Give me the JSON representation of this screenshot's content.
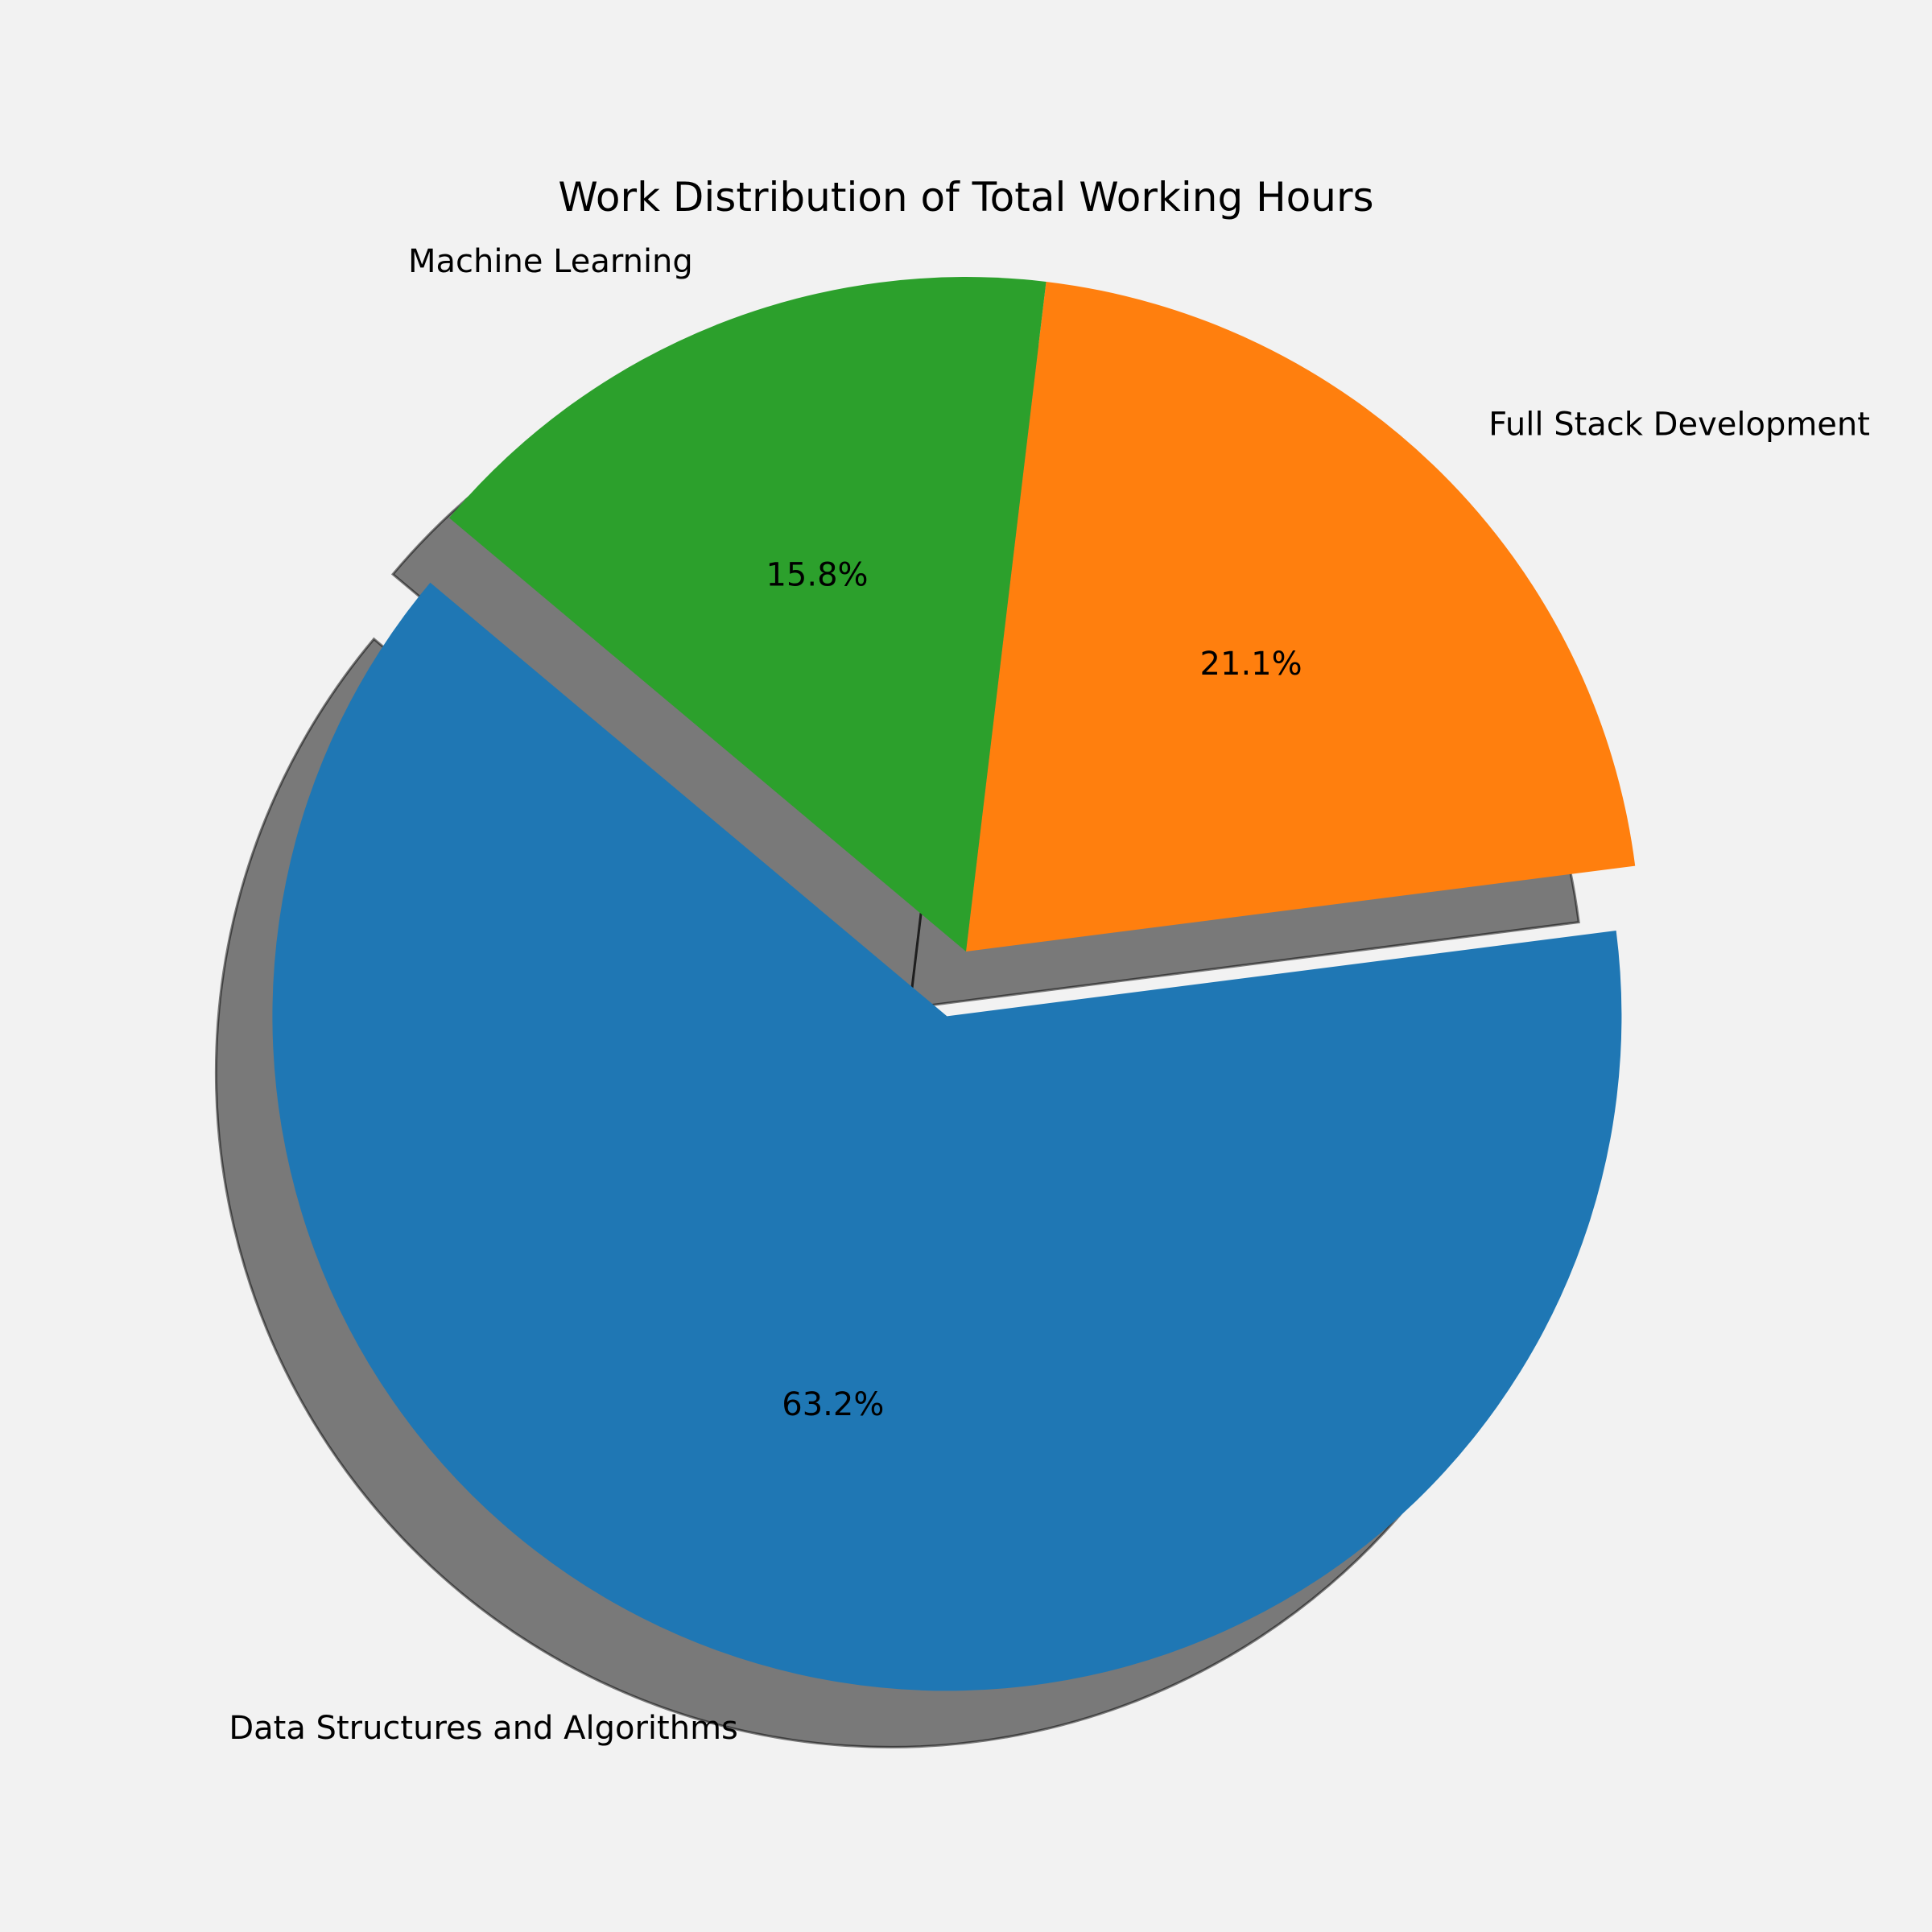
{
  "chart_data": {
    "type": "pie",
    "title": "Work Distribution of Total Working Hours",
    "start_angle_deg": 140,
    "direction": "counterclockwise",
    "shadow": true,
    "slices": [
      {
        "label": "Data Structures and Algorithms",
        "percent": 63.2,
        "percent_label": "63.2%",
        "color": "#1f77b4",
        "exploded": true
      },
      {
        "label": "Full Stack Development",
        "percent": 21.1,
        "percent_label": "21.1%",
        "color": "#ff7f0e",
        "exploded": false
      },
      {
        "label": "Machine Learning",
        "percent": 15.8,
        "percent_label": "15.8%",
        "color": "#2ca02c",
        "exploded": false
      }
    ]
  },
  "background_color": "#f2f2f2"
}
